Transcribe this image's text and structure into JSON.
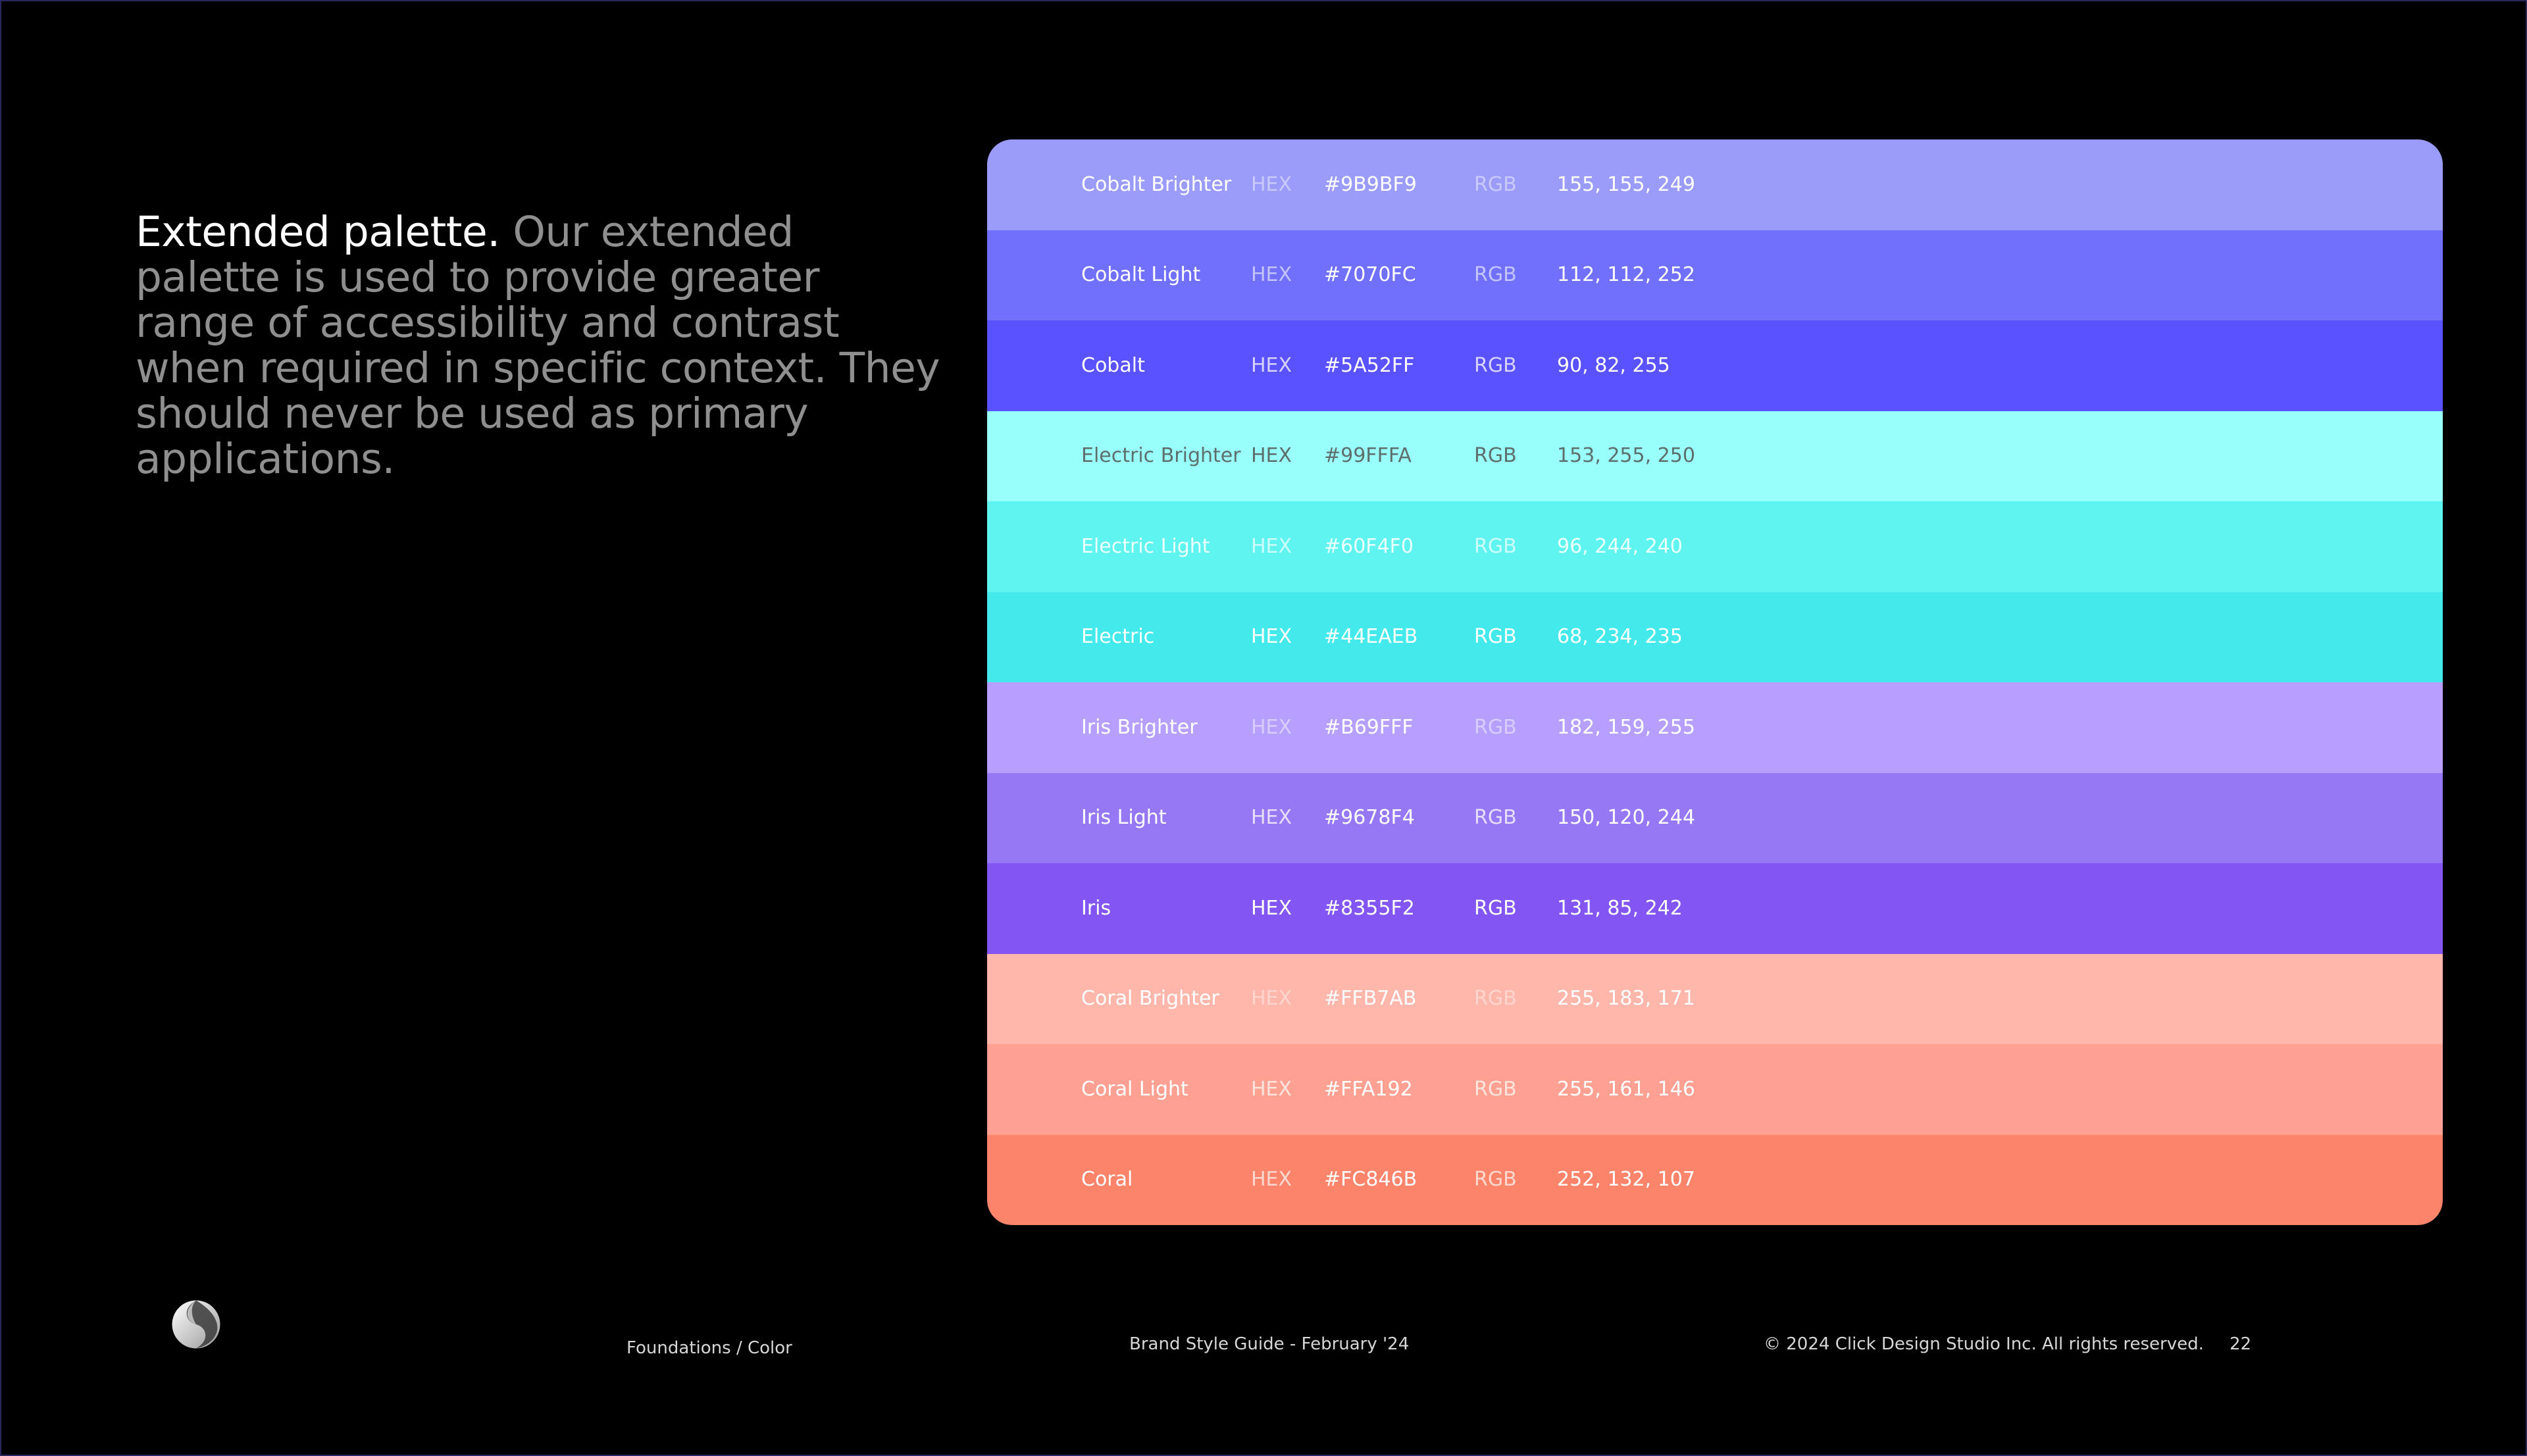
{
  "intro": {
    "lead": "Extended palette.",
    "body": " Our extended palette is used to provide greater range of accessibility and contrast when required in specific context. They should never be used as primary applications."
  },
  "palette": [
    {
      "name": "Cobalt Brighter",
      "hex_label": "HEX",
      "hex": "#9B9BF9",
      "rgb_label": "RGB",
      "rgb": "155, 155, 249",
      "bg": "#9B9BF9",
      "text": "#ffffff",
      "label_color": "#c9c9fc"
    },
    {
      "name": "Cobalt Light",
      "hex_label": "HEX",
      "hex": "#7070FC",
      "rgb_label": "RGB",
      "rgb": "112, 112, 252",
      "bg": "#7070FC",
      "text": "#ffffff",
      "label_color": "#c4c4fe"
    },
    {
      "name": "Cobalt",
      "hex_label": "HEX",
      "hex": "#5A52FF",
      "rgb_label": "RGB",
      "rgb": "90, 82, 255",
      "bg": "#5A52FF",
      "text": "#ffffff",
      "label_color": "#d6d3ff"
    },
    {
      "name": "Electric Brighter",
      "hex_label": "HEX",
      "hex": "#99FFFA",
      "rgb_label": "RGB",
      "rgb": "153, 255, 250",
      "bg": "#99FFFA",
      "text": "#5e6e6d",
      "label_color": "#5e6e6d"
    },
    {
      "name": "Electric Light",
      "hex_label": "HEX",
      "hex": "#60F4F0",
      "rgb_label": "RGB",
      "rgb": "96, 244, 240",
      "bg": "#60F4F0",
      "text": "#eafffe",
      "label_color": "#cdfcfa"
    },
    {
      "name": "Electric",
      "hex_label": "HEX",
      "hex": "#44EAEB",
      "rgb_label": "RGB",
      "rgb": "68, 234, 235",
      "bg": "#44EAEB",
      "text": "#ffffff",
      "label_color": "#ffffff"
    },
    {
      "name": "Iris Brighter",
      "hex_label": "HEX",
      "hex": "#B69FFF",
      "rgb_label": "RGB",
      "rgb": "182, 159, 255",
      "bg": "#B69FFF",
      "text": "#ffffff",
      "label_color": "#d9cdff"
    },
    {
      "name": "Iris Light",
      "hex_label": "HEX",
      "hex": "#9678F4",
      "rgb_label": "RGB",
      "rgb": "150, 120, 244",
      "bg": "#9678F4",
      "text": "#ffffff",
      "label_color": "#e6ddff"
    },
    {
      "name": "Iris",
      "hex_label": "HEX",
      "hex": "#8355F2",
      "rgb_label": "RGB",
      "rgb": "131, 85, 242",
      "bg": "#8355F2",
      "text": "#ffffff",
      "label_color": "#ffffff"
    },
    {
      "name": "Coral Brighter",
      "hex_label": "HEX",
      "hex": "#FFB7AB",
      "rgb_label": "RGB",
      "rgb": "255, 183, 171",
      "bg": "#FFB7AB",
      "text": "#ffffff",
      "label_color": "#ffd5ce"
    },
    {
      "name": "Coral Light",
      "hex_label": "HEX",
      "hex": "#FFA192",
      "rgb_label": "RGB",
      "rgb": "255, 161, 146",
      "bg": "#FFA192",
      "text": "#ffffff",
      "label_color": "#ffe4de"
    },
    {
      "name": "Coral",
      "hex_label": "HEX",
      "hex": "#FC846B",
      "rgb_label": "RGB",
      "rgb": "252, 132, 107",
      "bg": "#FC846B",
      "text": "#ffffff",
      "label_color": "#ffd9cf"
    }
  ],
  "footer": {
    "section": "Foundations / Color",
    "doc_title": "Brand Style Guide - February '24",
    "copyright": "© 2024 Click Design Studio Inc. All rights reserved.",
    "page_number": "22"
  },
  "logo": {
    "icon": "brand-logo-icon"
  }
}
